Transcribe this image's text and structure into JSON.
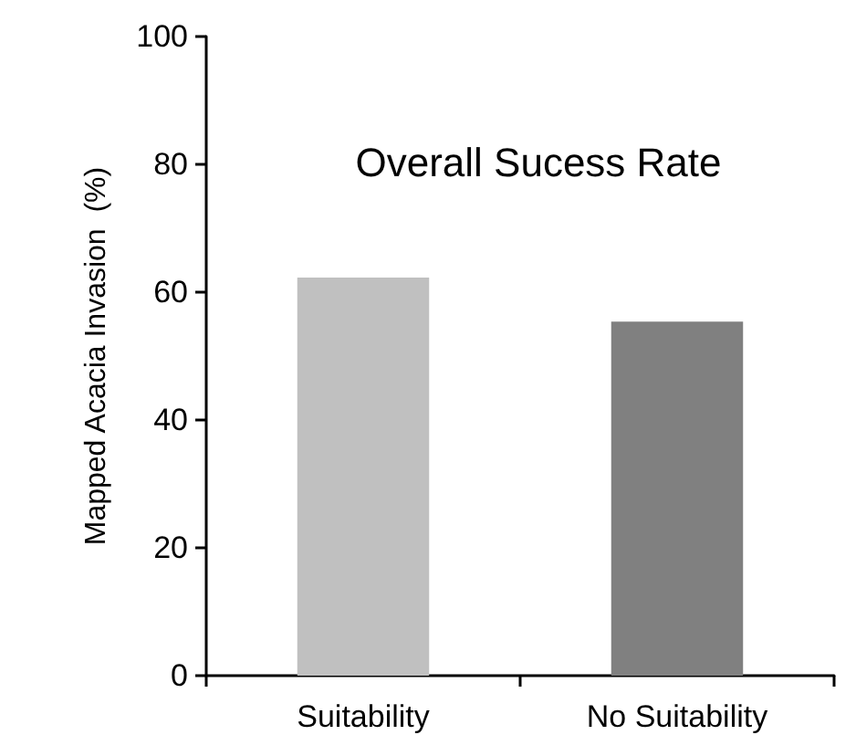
{
  "chart_data": {
    "type": "bar",
    "title": "Overall Sucess Rate",
    "ylabel": "Mapped Acacia Invasion  (%)",
    "categories": [
      "Suitability",
      "No Suitability"
    ],
    "values": [
      62.3,
      55.4
    ],
    "colors": [
      "#c0c0c0",
      "#808080"
    ],
    "ylim": [
      0,
      100
    ],
    "yticks": [
      0,
      20,
      40,
      60,
      80,
      100
    ],
    "grid": false
  }
}
